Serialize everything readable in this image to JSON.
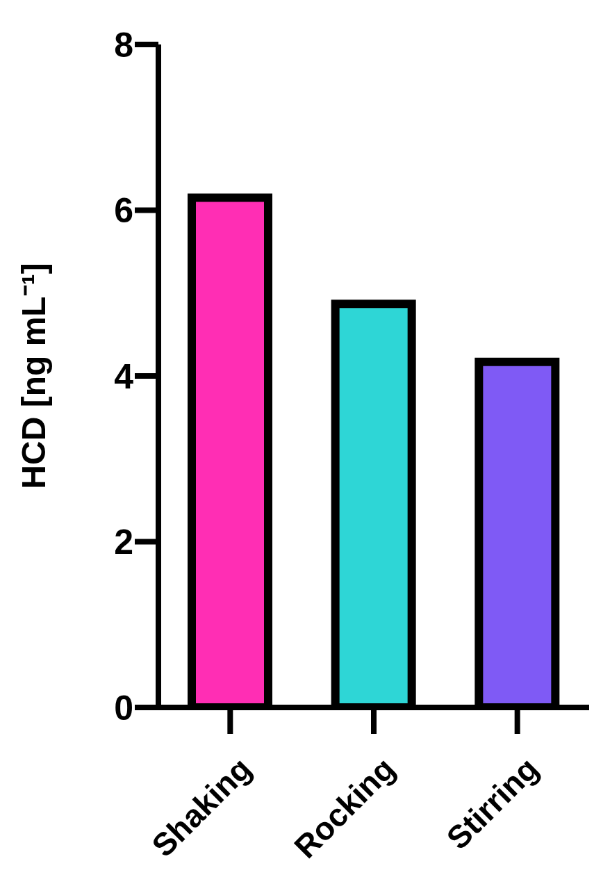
{
  "chart_data": {
    "type": "bar",
    "ylabel": "HCD [ng mL⁻¹]",
    "categories": [
      "Shaking",
      "Rocking",
      "Stirring"
    ],
    "values": [
      6.15,
      4.87,
      4.17
    ],
    "colors": [
      "#ff2eb4",
      "#2ed6d6",
      "#7f5af5"
    ],
    "ylim": [
      0,
      8
    ],
    "yticks": [
      0,
      2,
      4,
      6,
      8
    ],
    "grid": false,
    "legend": false
  }
}
